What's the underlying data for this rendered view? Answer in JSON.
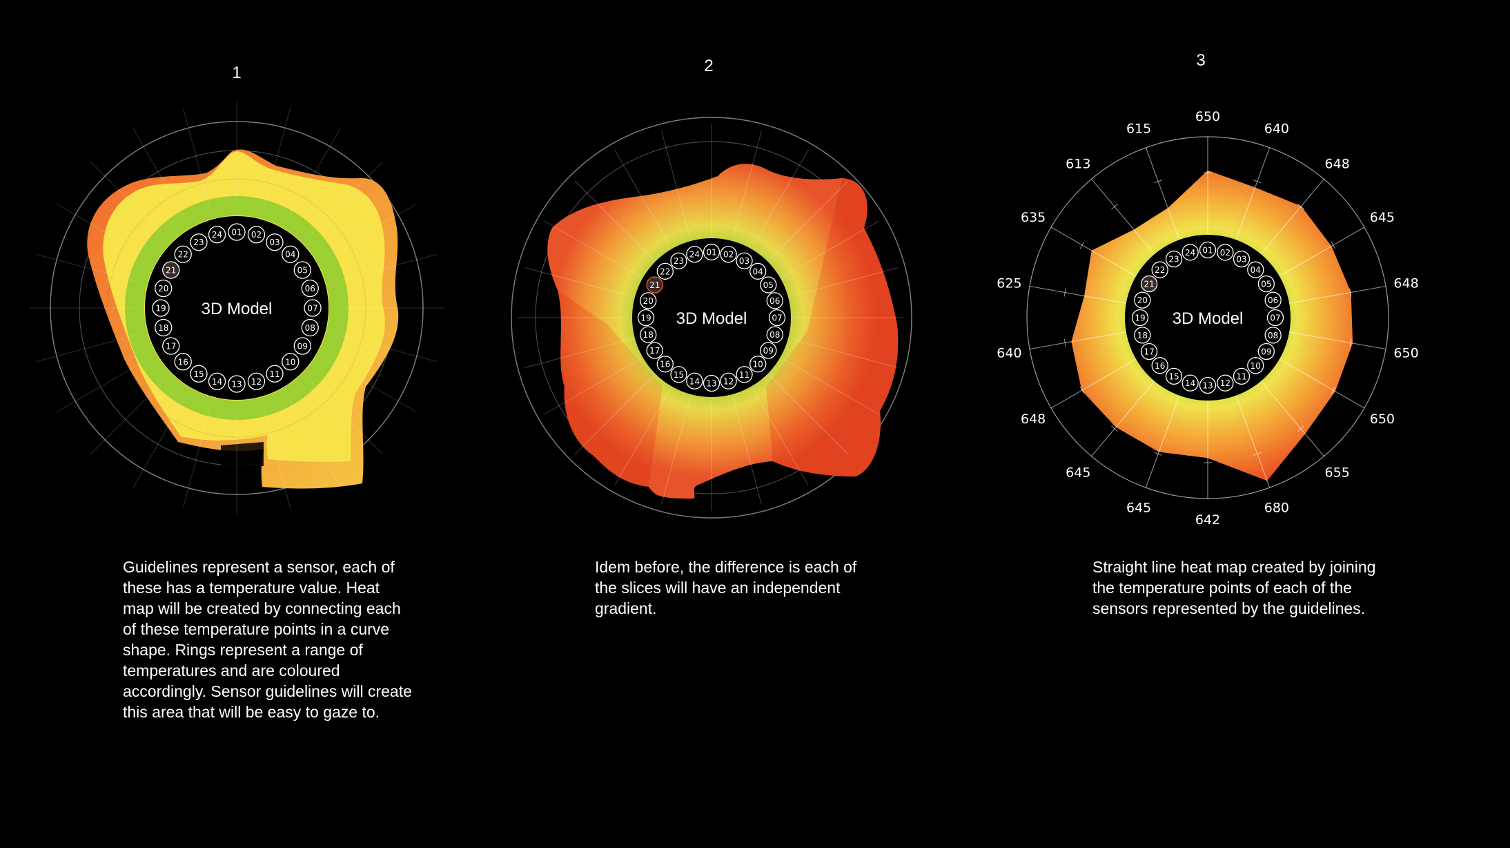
{
  "panels": [
    {
      "number": "1",
      "style": "curve-rings",
      "center_label": "3D Model",
      "highlighted_sensor": "21",
      "caption": "Guidelines represent a sensor, each of these has a temperature value. Heat map will be created by connecting each of these temperature points in a curve shape. Rings represent a range of temperatures and are coloured accordingly. Sensor guidelines will create this area that will be easy to gaze to."
    },
    {
      "number": "2",
      "style": "curve-slices",
      "center_label": "3D Model",
      "highlighted_sensor": "21",
      "caption": "Idem before, the difference is each of the slices will have an independent gradient."
    },
    {
      "number": "3",
      "style": "straight-line",
      "center_label": "3D Model",
      "highlighted_sensor": "21",
      "caption": "Straight line heat map created by joining the temperature points of each of the sensors represented by the guidelines.",
      "temperatures": [
        "650",
        "640",
        "648",
        "645",
        "648",
        "650",
        "650",
        "655",
        "680",
        "642",
        "645",
        "645",
        "648",
        "640",
        "625",
        "635",
        "613",
        "615"
      ]
    }
  ],
  "sensors": [
    "01",
    "02",
    "03",
    "04",
    "05",
    "06",
    "07",
    "08",
    "09",
    "10",
    "11",
    "12",
    "13",
    "14",
    "15",
    "16",
    "17",
    "18",
    "19",
    "20",
    "21",
    "22",
    "23",
    "24"
  ],
  "colors": {
    "background": "#000000",
    "green": "#9acd32",
    "yellow": "#f5e04a",
    "orange": "#f08a2e",
    "red": "#e53a1e",
    "highlight": "#ff5a1a",
    "guide": "#8a8a8a"
  }
}
